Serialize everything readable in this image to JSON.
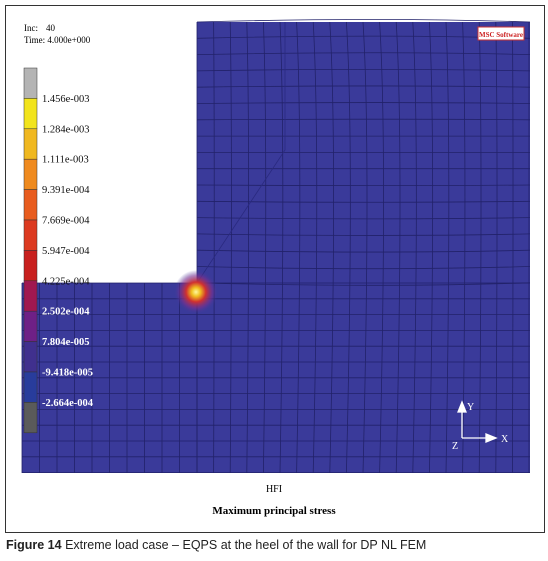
{
  "header": {
    "inc_label": "Inc:",
    "inc_value": "40",
    "time": "Time: 4.000e+000",
    "logo": "MSC Software"
  },
  "legend": {
    "labels": [
      "1.456e-003",
      "1.284e-003",
      "1.111e-003",
      "9.391e-004",
      "7.669e-004",
      "5.947e-004",
      "4.225e-004",
      "2.502e-004",
      "7.804e-005",
      "-9.418e-005",
      "-2.664e-004"
    ]
  },
  "axes": {
    "y": "Y",
    "x": "X",
    "z": "Z"
  },
  "plot": {
    "id": "HFI",
    "subtitle": "Maximum principal stress"
  },
  "caption": {
    "label": "Figure 14",
    "text": "Extreme load case – EQPS at the heel of the wall for DP NL FEM"
  }
}
